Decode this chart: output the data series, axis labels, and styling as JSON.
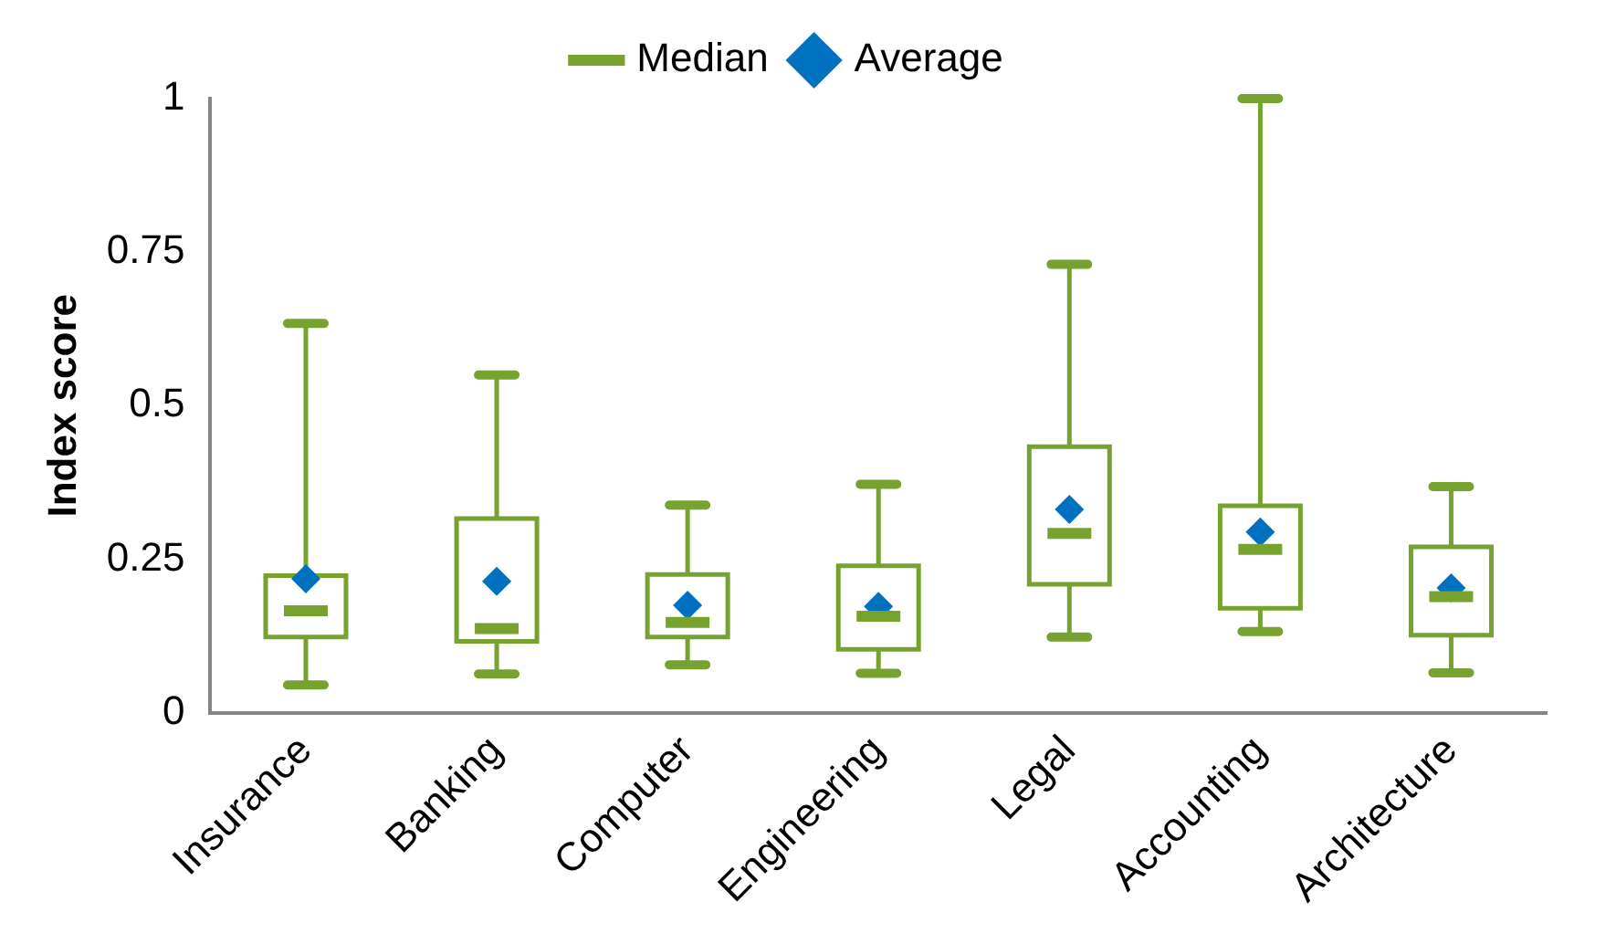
{
  "chart_data": {
    "type": "box",
    "ylabel": "Index score",
    "categories": [
      "Insurance",
      "Banking",
      "Computer",
      "Engineering",
      "Legal",
      "Accounting",
      "Architecture"
    ],
    "ylim": [
      0,
      1
    ],
    "yticks": [
      0,
      0.25,
      0.5,
      0.75,
      1
    ],
    "grid": false,
    "legend": "top",
    "series": [
      {
        "name": "Median",
        "color": "#77a22f",
        "boxes": [
          {
            "low": 0.045,
            "q1": 0.123,
            "median": 0.166,
            "q3": 0.223,
            "high": 0.634
          },
          {
            "low": 0.063,
            "q1": 0.116,
            "median": 0.137,
            "q3": 0.316,
            "high": 0.55
          },
          {
            "low": 0.078,
            "q1": 0.123,
            "median": 0.147,
            "q3": 0.225,
            "high": 0.338
          },
          {
            "low": 0.064,
            "q1": 0.103,
            "median": 0.157,
            "q3": 0.239,
            "high": 0.372
          },
          {
            "low": 0.123,
            "q1": 0.209,
            "median": 0.292,
            "q3": 0.433,
            "high": 0.73
          },
          {
            "low": 0.132,
            "q1": 0.17,
            "median": 0.266,
            "q3": 0.337,
            "high": 1.0
          },
          {
            "low": 0.065,
            "q1": 0.126,
            "median": 0.189,
            "q3": 0.27,
            "high": 0.368
          }
        ]
      },
      {
        "type": "scatter",
        "name": "Average",
        "color": "#0070c0",
        "marker": "diamond",
        "x": [
          "Insurance",
          "Banking",
          "Computer",
          "Engineering",
          "Legal",
          "Accounting",
          "Architecture"
        ],
        "values": [
          0.218,
          0.214,
          0.175,
          0.173,
          0.331,
          0.294,
          0.203
        ]
      }
    ]
  }
}
